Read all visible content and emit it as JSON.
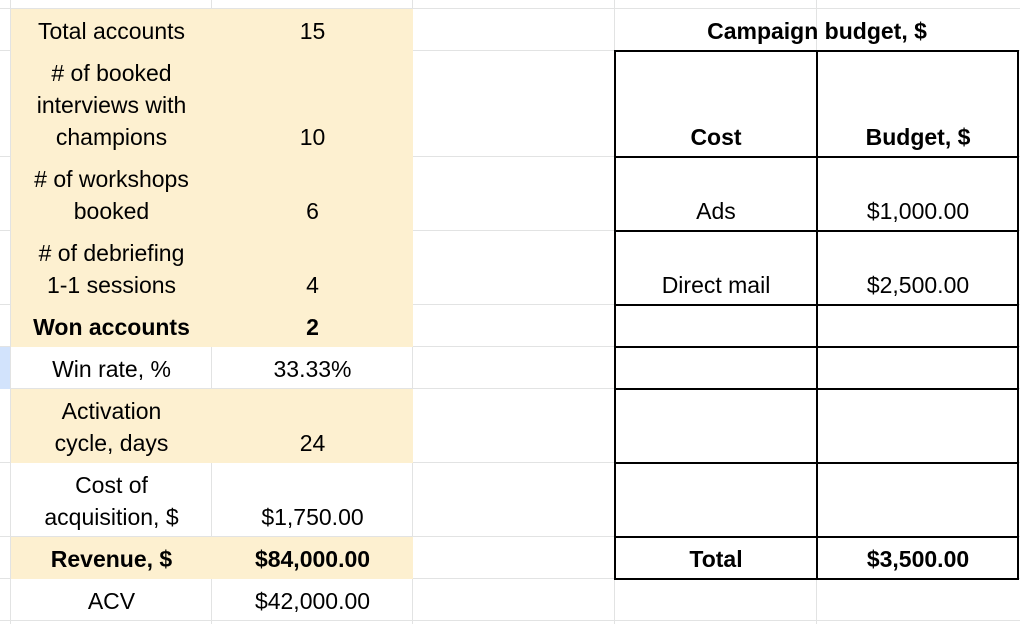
{
  "metrics": [
    {
      "label": "Total accounts",
      "value": "15"
    },
    {
      "label": "# of booked\ninterviews with\nchampions",
      "value": "10"
    },
    {
      "label": "# of workshops\nbooked",
      "value": "6"
    },
    {
      "label": "# of debriefing\n1-1 sessions",
      "value": "4"
    },
    {
      "label": "Won accounts",
      "value": "2"
    },
    {
      "label": "Win rate, %",
      "value": "33.33%"
    },
    {
      "label": "Activation\ncycle, days",
      "value": "24"
    },
    {
      "label": "Cost of\nacquisition, $",
      "value": "$1,750.00"
    },
    {
      "label": "Revenue, $",
      "value": "$84,000.00"
    },
    {
      "label": "ACV",
      "value": "$42,000.00"
    }
  ],
  "budget": {
    "title": "Campaign budget, $",
    "header_cost": "Cost",
    "header_budget": "Budget, $",
    "rows": [
      {
        "cost": "Ads",
        "budget": "$1,000.00"
      },
      {
        "cost": "Direct mail",
        "budget": "$2,500.00"
      }
    ],
    "total_label": "Total",
    "total_value": "$3,500.00"
  }
}
